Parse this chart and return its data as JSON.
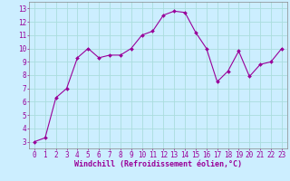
{
  "x": [
    0,
    1,
    2,
    3,
    4,
    5,
    6,
    7,
    8,
    9,
    10,
    11,
    12,
    13,
    14,
    15,
    16,
    17,
    18,
    19,
    20,
    21,
    22,
    23
  ],
  "y": [
    3.0,
    3.3,
    6.3,
    7.0,
    9.3,
    10.0,
    9.3,
    9.5,
    9.5,
    10.0,
    11.0,
    11.3,
    12.5,
    12.8,
    12.7,
    11.2,
    10.0,
    7.5,
    8.3,
    9.8,
    7.9,
    8.8,
    9.0,
    10.0
  ],
  "line_color": "#990099",
  "marker": "D",
  "marker_size": 2.0,
  "bg_color": "#cceeff",
  "grid_color": "#aadddd",
  "xlabel": "Windchill (Refroidissement éolien,°C)",
  "xlabel_fontsize": 6.0,
  "xlabel_color": "#990099",
  "xlim": [
    -0.5,
    23.5
  ],
  "ylim": [
    2.5,
    13.5
  ],
  "xticks": [
    0,
    1,
    2,
    3,
    4,
    5,
    6,
    7,
    8,
    9,
    10,
    11,
    12,
    13,
    14,
    15,
    16,
    17,
    18,
    19,
    20,
    21,
    22,
    23
  ],
  "yticks": [
    3,
    4,
    5,
    6,
    7,
    8,
    9,
    10,
    11,
    12,
    13
  ],
  "tick_fontsize": 5.5,
  "tick_color": "#990099",
  "spine_color": "#888888"
}
